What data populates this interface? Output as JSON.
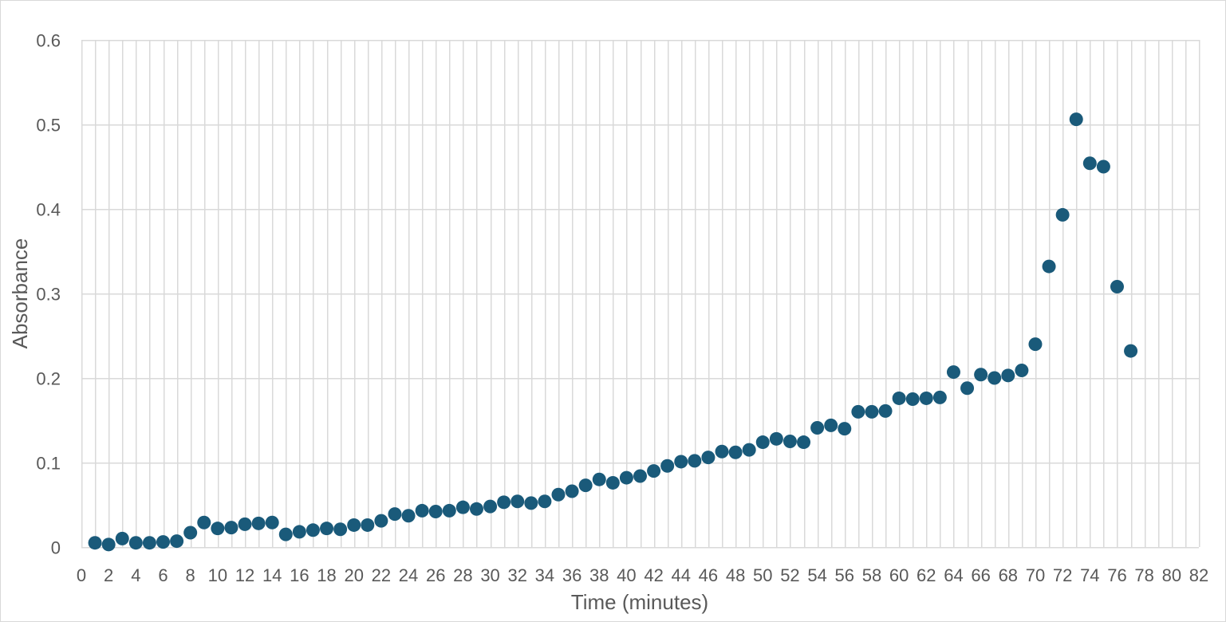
{
  "chart_data": {
    "type": "scatter",
    "title": "",
    "xlabel": "Time (minutes)",
    "ylabel": "Absorbance",
    "xlim": [
      0,
      82
    ],
    "ylim": [
      0,
      0.6
    ],
    "x_ticks": [
      "0",
      "2",
      "4",
      "6",
      "8",
      "10",
      "12",
      "14",
      "16",
      "18",
      "20",
      "22",
      "24",
      "26",
      "28",
      "30",
      "32",
      "34",
      "36",
      "38",
      "40",
      "42",
      "44",
      "46",
      "48",
      "50",
      "52",
      "54",
      "56",
      "58",
      "60",
      "62",
      "64",
      "66",
      "68",
      "70",
      "72",
      "74",
      "76",
      "78",
      "80",
      "82"
    ],
    "y_ticks": [
      "0",
      "0.1",
      "0.2",
      "0.3",
      "0.4",
      "0.5",
      "0.6"
    ],
    "grid": true,
    "legend": "none",
    "marker_color": "#1a5a7a",
    "series": [
      {
        "x": [
          1,
          2,
          3,
          4,
          5,
          6,
          7,
          8,
          9,
          10,
          11,
          12,
          13,
          14,
          15,
          16,
          17,
          18,
          19,
          20,
          21,
          22,
          23,
          24,
          25,
          26,
          27,
          28,
          29,
          30,
          31,
          32,
          33,
          34,
          35,
          36,
          37,
          38,
          39,
          40,
          41,
          42,
          43,
          44,
          45,
          46,
          47,
          48,
          49,
          50,
          51,
          52,
          53,
          54,
          55,
          56,
          57,
          58,
          59,
          60,
          61,
          62,
          63,
          64,
          65,
          66,
          67,
          68,
          69,
          70,
          71,
          72,
          73,
          74,
          75,
          76,
          77
        ],
        "y": [
          0.005,
          0.003,
          0.01,
          0.005,
          0.005,
          0.006,
          0.007,
          0.017,
          0.029,
          0.022,
          0.023,
          0.027,
          0.028,
          0.029,
          0.015,
          0.018,
          0.02,
          0.022,
          0.021,
          0.026,
          0.026,
          0.031,
          0.039,
          0.037,
          0.043,
          0.042,
          0.043,
          0.047,
          0.045,
          0.048,
          0.053,
          0.054,
          0.052,
          0.054,
          0.062,
          0.066,
          0.073,
          0.08,
          0.076,
          0.082,
          0.084,
          0.09,
          0.096,
          0.101,
          0.102,
          0.106,
          0.113,
          0.112,
          0.115,
          0.124,
          0.128,
          0.125,
          0.124,
          0.141,
          0.144,
          0.14,
          0.16,
          0.16,
          0.161,
          0.176,
          0.175,
          0.176,
          0.177,
          0.207,
          0.188,
          0.204,
          0.2,
          0.203,
          0.209,
          0.24,
          0.332,
          0.393,
          0.506,
          0.454,
          0.45,
          0.308,
          0.232
        ]
      }
    ]
  }
}
